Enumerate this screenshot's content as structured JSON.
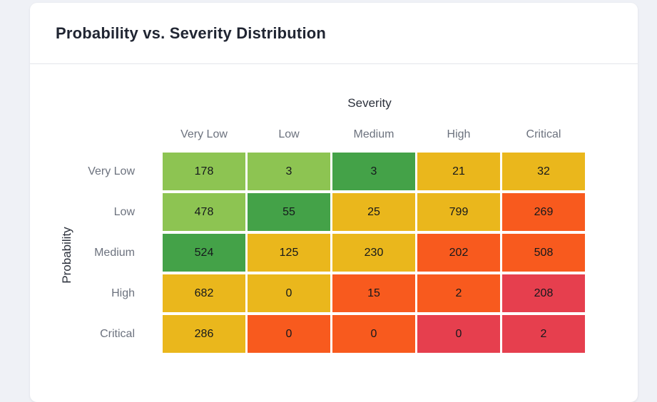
{
  "page": {
    "background": "#eff1f6"
  },
  "card": {
    "title": "Probability vs. Severity Distribution"
  },
  "chart_data": {
    "type": "heatmap",
    "title": "Probability vs. Severity Distribution",
    "xlabel": "Severity",
    "ylabel": "Probability",
    "columns": [
      "Very Low",
      "Low",
      "Medium",
      "High",
      "Critical"
    ],
    "rows": [
      "Very Low",
      "Low",
      "Medium",
      "High",
      "Critical"
    ],
    "values": [
      [
        178,
        3,
        3,
        21,
        32
      ],
      [
        478,
        55,
        25,
        799,
        269
      ],
      [
        524,
        125,
        230,
        202,
        508
      ],
      [
        682,
        0,
        15,
        2,
        208
      ],
      [
        286,
        0,
        0,
        0,
        2
      ]
    ],
    "cell_colors": [
      [
        "light-green",
        "light-green",
        "dark-green",
        "yellow",
        "yellow"
      ],
      [
        "light-green",
        "dark-green",
        "yellow",
        "yellow",
        "orange"
      ],
      [
        "dark-green",
        "yellow",
        "yellow",
        "orange",
        "orange"
      ],
      [
        "yellow",
        "yellow",
        "orange",
        "orange",
        "red"
      ],
      [
        "yellow",
        "orange",
        "orange",
        "red",
        "red"
      ]
    ],
    "palette": {
      "light-green": "#8dc452",
      "dark-green": "#44a248",
      "yellow": "#eab71c",
      "orange": "#f85a1e",
      "red": "#e63f4e"
    },
    "legend_position": "none",
    "grid": false
  }
}
